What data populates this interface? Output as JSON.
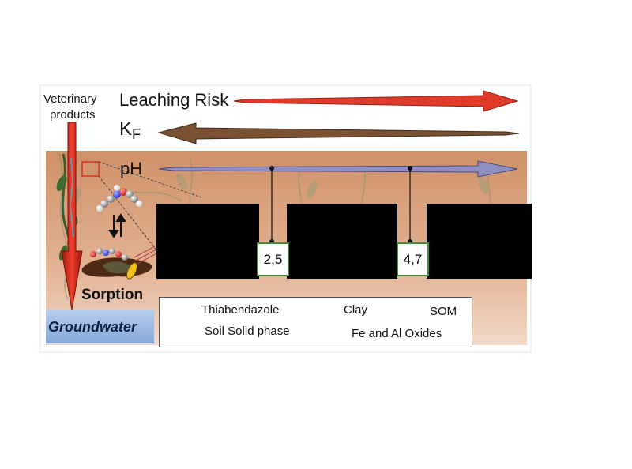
{
  "labels": {
    "veterinary_line1": "Veterinary",
    "veterinary_line2": "products",
    "leaching_risk": "Leaching Risk",
    "kf_main": "K",
    "kf_sub": "F",
    "ph": "pH",
    "sorption": "Sorption",
    "groundwater": "Groundwater"
  },
  "pka_values": [
    "2,5",
    "4,7"
  ],
  "legend": {
    "thiabendazole": "Thiabendazole",
    "clay": "Clay",
    "som": "SOM",
    "soil_solid_phase": "Soil Solid phase",
    "fe_al_oxides": "Fe and Al Oxides"
  },
  "colors": {
    "soil": "#d9a07a",
    "groundwater": "#9bb9e0",
    "leaching_arrow": "#e03b2a",
    "kf_arrow": "#7a5233",
    "ph_arrow": "#8f8fc4",
    "pka_border": "#4a8a3a",
    "veterinary_arrow": "#d6281c"
  },
  "icons": [
    "thiabendazole-molecule-icon",
    "clay-icon",
    "som-icon",
    "soil-solid-phase-icon",
    "fe-al-oxide-icon"
  ]
}
